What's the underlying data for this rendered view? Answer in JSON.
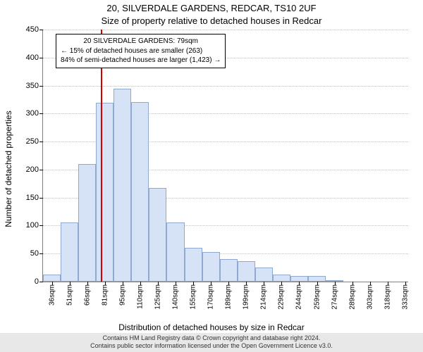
{
  "title_line1": "20, SILVERDALE GARDENS, REDCAR, TS10 2UF",
  "title_line2": "Size of property relative to detached houses in Redcar",
  "ylabel": "Number of detached properties",
  "xlabel": "Distribution of detached houses by size in Redcar",
  "chart": {
    "type": "histogram",
    "background_color": "#ffffff",
    "grid_color": "#c0c0c0",
    "axis_color": "#808080",
    "tick_color": "#000000",
    "bar_fill": "#d6e2f5",
    "bar_border": "#8fa9d1",
    "highlight_color": "#d40000",
    "ylim": [
      0,
      450
    ],
    "ytick_step": 50,
    "highlight_x": 79,
    "highlight_label_sqm": "79sqm",
    "bar_width_data_units": 15,
    "plot_x_range": [
      30,
      340
    ],
    "bins": [
      {
        "x_start": 30,
        "label": "36sqm",
        "value": 13
      },
      {
        "x_start": 45,
        "label": "51sqm",
        "value": 105
      },
      {
        "x_start": 60,
        "label": "66sqm",
        "value": 210
      },
      {
        "x_start": 75,
        "label": "81sqm",
        "value": 319
      },
      {
        "x_start": 90,
        "label": "95sqm",
        "value": 345
      },
      {
        "x_start": 105,
        "label": "110sqm",
        "value": 320
      },
      {
        "x_start": 120,
        "label": "125sqm",
        "value": 167
      },
      {
        "x_start": 135,
        "label": "140sqm",
        "value": 105
      },
      {
        "x_start": 150,
        "label": "155sqm",
        "value": 60
      },
      {
        "x_start": 165,
        "label": "170sqm",
        "value": 53
      },
      {
        "x_start": 180,
        "label": "189sqm",
        "value": 40
      },
      {
        "x_start": 195,
        "label": "199sqm",
        "value": 37
      },
      {
        "x_start": 210,
        "label": "214sqm",
        "value": 25
      },
      {
        "x_start": 225,
        "label": "229sqm",
        "value": 12
      },
      {
        "x_start": 240,
        "label": "244sqm",
        "value": 10
      },
      {
        "x_start": 255,
        "label": "259sqm",
        "value": 10
      },
      {
        "x_start": 270,
        "label": "274sqm",
        "value": 3
      },
      {
        "x_start": 285,
        "label": "289sqm",
        "value": 0
      },
      {
        "x_start": 300,
        "label": "303sqm",
        "value": 0
      },
      {
        "x_start": 315,
        "label": "318sqm",
        "value": 0
      },
      {
        "x_start": 330,
        "label": "333sqm",
        "value": 0
      }
    ],
    "tick_fontsize": 10,
    "label_fontsize": 12,
    "title_fontsize": 13
  },
  "annotation": {
    "line1": "20 SILVERDALE GARDENS: 79sqm",
    "line2": "← 15% of detached houses are smaller (263)",
    "line3": "84% of semi-detached houses are larger (1,423) →",
    "border_color": "#000000",
    "background_color": "#ffffff",
    "fontsize": 10
  },
  "footer": {
    "line1": "Contains HM Land Registry data © Crown copyright and database right 2024.",
    "line2": "Contains public sector information licensed under the Open Government Licence v3.0.",
    "background_color": "#e8e8e8",
    "fontsize": 9
  }
}
